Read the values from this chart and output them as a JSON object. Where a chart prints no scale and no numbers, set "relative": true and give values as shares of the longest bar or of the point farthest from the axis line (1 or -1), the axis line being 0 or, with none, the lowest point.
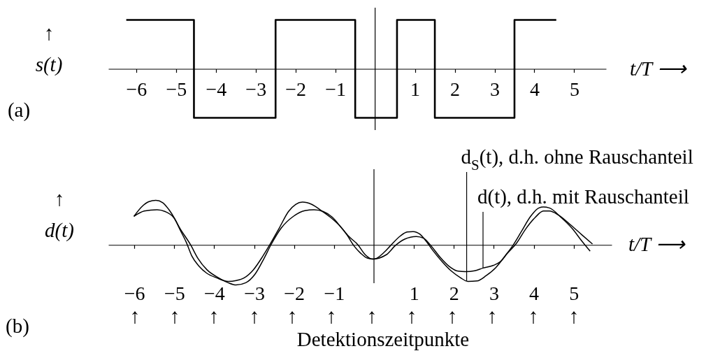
{
  "chart_data": [
    {
      "type": "step",
      "title": "(a)",
      "ylabel": "↑\ns(t)",
      "xlabel": "t/T ⟶",
      "relative": true,
      "x": [
        -6.25,
        -4.55,
        -2.5,
        -0.5,
        0.55,
        1.5,
        3.5,
        4.55
      ],
      "series": [
        {
          "color": "#000000",
          "values": [
            1,
            -1,
            1,
            -1,
            1,
            -1,
            1,
            1
          ]
        }
      ],
      "xlim": [
        -6.7,
        5.8
      ],
      "xticks": [
        {
          "value": -6,
          "label": "−6"
        },
        {
          "value": -5,
          "label": "−5"
        },
        {
          "value": -4,
          "label": "−4"
        },
        {
          "value": -3,
          "label": "−3"
        },
        {
          "value": -2,
          "label": "−2"
        },
        {
          "value": -1,
          "label": "−1"
        },
        1,
        2,
        3,
        4,
        5
      ],
      "ref_lines": [
        {
          "axis": "x",
          "value": 0,
          "color": "#000000"
        }
      ]
    },
    {
      "type": "line",
      "title": "(b)",
      "ylabel": "↑\nd(t)",
      "xlabel": "t/T ⟶",
      "relative": true,
      "series": [
        {
          "color": "#000000",
          "x": [
            -6.01,
            -5.81,
            -5.64,
            -5.46,
            -5.29,
            -5.14,
            -4.99,
            -4.85,
            -4.7,
            -4.56,
            -4.38,
            -4.18,
            -3.94,
            -3.65,
            -3.45,
            -3.25,
            -3.02,
            -2.78,
            -2.61,
            -2.37,
            -2.14,
            -1.96,
            -1.79,
            -1.56,
            -1.32,
            -1.09,
            -0.86,
            -0.68,
            -0.51,
            -0.33,
            -0.16,
            0.0,
            0.25,
            0.42,
            0.66,
            0.83,
            0.98,
            1.15,
            1.3,
            1.47,
            1.71,
            1.94,
            2.17,
            2.35,
            2.58,
            2.81,
            3.05,
            3.28,
            3.48,
            3.69,
            3.92,
            4.13,
            4.24,
            4.39,
            4.68,
            4.97,
            5.2,
            5.41
          ],
          "values": [
            0.64,
            0.86,
            0.97,
            1.0,
            0.95,
            0.8,
            0.59,
            0.33,
            0.06,
            -0.25,
            -0.48,
            -0.64,
            -0.74,
            -0.82,
            -0.8,
            -0.74,
            -0.56,
            -0.25,
            0.0,
            0.38,
            0.75,
            0.91,
            0.96,
            0.91,
            0.77,
            0.62,
            0.43,
            0.23,
            -0.01,
            -0.19,
            -0.3,
            -0.32,
            -0.17,
            -0.01,
            0.2,
            0.29,
            0.3,
            0.24,
            0.09,
            -0.12,
            -0.38,
            -0.59,
            -0.74,
            -0.82,
            -0.81,
            -0.69,
            -0.51,
            -0.25,
            -0.01,
            0.3,
            0.64,
            0.83,
            0.85,
            0.83,
            0.62,
            0.36,
            0.09,
            -0.14
          ]
        },
        {
          "color": "#000000",
          "x": [
            -6.01,
            -5.75,
            -5.43,
            -5.23,
            -5.02,
            -4.85,
            -4.59,
            -4.41,
            -4.18,
            -3.89,
            -3.65,
            -3.45,
            -3.21,
            -2.98,
            -2.75,
            -2.58,
            -2.32,
            -2.02,
            -1.73,
            -1.5,
            -1.27,
            -1.04,
            -0.81,
            -0.64,
            -0.4,
            -0.22,
            -0.04,
            0.31,
            0.54,
            0.77,
            1.06,
            1.24,
            1.42,
            1.65,
            1.88,
            2.11,
            2.29,
            2.52,
            2.73,
            2.99,
            3.16,
            3.34,
            3.57,
            3.8,
            4.04,
            4.24,
            4.39,
            4.62,
            4.91,
            5.2,
            5.47
          ],
          "values": [
            0.64,
            0.76,
            0.79,
            0.75,
            0.62,
            0.36,
            0.0,
            -0.3,
            -0.56,
            -0.74,
            -0.85,
            -0.9,
            -0.85,
            -0.66,
            -0.3,
            0.0,
            0.38,
            0.64,
            0.77,
            0.79,
            0.75,
            0.62,
            0.38,
            0.2,
            0.0,
            -0.22,
            -0.32,
            -0.22,
            -0.01,
            0.13,
            0.19,
            0.15,
            -0.01,
            -0.27,
            -0.48,
            -0.59,
            -0.6,
            -0.58,
            -0.52,
            -0.46,
            -0.38,
            -0.19,
            0.04,
            0.36,
            0.62,
            0.76,
            0.76,
            0.67,
            0.46,
            0.23,
            0.02
          ]
        }
      ],
      "xlim": [
        -6.65,
        5.95
      ],
      "xticks": [
        {
          "value": -6,
          "label": "−6"
        },
        {
          "value": -5,
          "label": "−5"
        },
        {
          "value": -4,
          "label": "−4"
        },
        {
          "value": -3,
          "label": "−3"
        },
        {
          "value": -2,
          "label": "−2"
        },
        {
          "value": -1,
          "label": "−1"
        },
        1,
        2,
        3,
        4,
        5
      ],
      "ref_lines": [
        {
          "axis": "x",
          "value": 0,
          "color": "#000000"
        }
      ],
      "annotations": [
        {
          "text": "d$_{S}$(t), d.h. ohne Rauschanteil",
          "x": 2.32,
          "y": -0.81
        },
        {
          "text": "d(t), d.h. mit Rauschanteil",
          "x": 2.73,
          "y": -0.52
        },
        "↑",
        "↑",
        "↑",
        "↑",
        "↑",
        "↑",
        "↑",
        "↑",
        "↑",
        "↑",
        "↑",
        "↑",
        "Detektionszeitpunkte"
      ]
    }
  ]
}
